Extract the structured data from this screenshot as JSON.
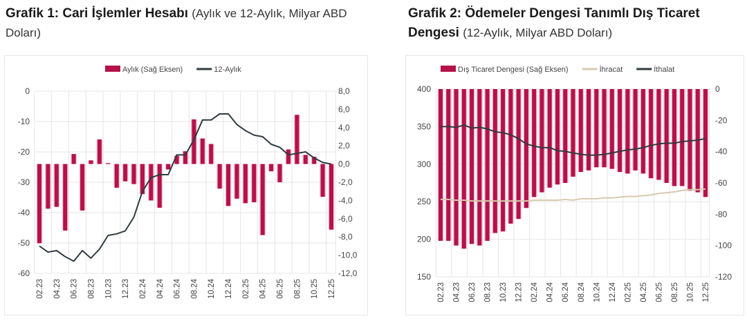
{
  "titles": {
    "chart1_bold": "Grafik 1: Cari İşlemler Hesabı",
    "chart1_sub": "(Aylık ve 12-Aylık, Milyar ABD Doları)",
    "chart2_bold": "Grafik 2: Ödemeler Dengesi Tanımlı Dış Ticaret Dengesi",
    "chart2_sub": "(12-Aylık, Milyar ABD Doları)"
  },
  "colors": {
    "bar": "#b5124a",
    "bar_glow": "#f7c9d6",
    "line_dark": "#2e3b40",
    "line_export": "#d9c9b0",
    "grid": "#e5e5e5"
  },
  "chart_data": [
    {
      "type": "bar+line",
      "title": "Grafik 1: Cari İşlemler Hesabı (Aylık ve 12-Aylık, Milyar ABD Doları)",
      "categories": [
        "02.23",
        "03.23",
        "04.23",
        "05.23",
        "06.23",
        "07.23",
        "08.23",
        "09.23",
        "10.23",
        "11.23",
        "12.23",
        "01.24",
        "02.24",
        "03.24",
        "04.24",
        "05.24",
        "06.24",
        "07.24",
        "08.24",
        "09.24",
        "10.24",
        "11.24",
        "12.24",
        "01.25",
        "02.25",
        "03.25",
        "04.25",
        "05.25",
        "06.25",
        "07.25",
        "08.25",
        "09.25",
        "10.25",
        "11.25",
        "12.25"
      ],
      "tick_labels": [
        "02.23",
        "04.23",
        "06.23",
        "08.23",
        "10.23",
        "12.23",
        "02.24",
        "04.24",
        "06.24",
        "08.24",
        "10.24",
        "12.24",
        "02.25",
        "04.25",
        "06.25",
        "08.25",
        "10.25",
        "12.25"
      ],
      "series": [
        {
          "name": "Aylık (Sağ Eksen)",
          "type": "bar",
          "axis": "right",
          "values": [
            -8.7,
            -4.9,
            -4.7,
            -7.3,
            1.1,
            -5.1,
            0.4,
            2.7,
            0.1,
            -2.6,
            -1.9,
            -2.2,
            -3.3,
            -4.0,
            -4.8,
            -0.6,
            0.9,
            1.4,
            4.9,
            2.8,
            2.2,
            -2.7,
            -4.6,
            -3.8,
            -4.3,
            -4.2,
            -7.8,
            -0.8,
            -2.0,
            1.6,
            5.4,
            1.0,
            0.8,
            -3.6,
            -7.2
          ]
        },
        {
          "name": "12-Aylık",
          "type": "line",
          "axis": "left",
          "values": [
            -51,
            -53,
            -52.5,
            -54.5,
            -56,
            -52.5,
            -55,
            -52,
            -47.5,
            -47,
            -46,
            -41.5,
            -33,
            -28.5,
            -27.5,
            -27.5,
            -21,
            -21,
            -16,
            -9.5,
            -9.5,
            -7.5,
            -7.5,
            -11,
            -13,
            -14.5,
            -15,
            -17.5,
            -18.5,
            -21,
            -20.5,
            -20,
            -22,
            -23.5,
            -24
          ]
        }
      ],
      "left_axis": {
        "ticks": [
          "0",
          "-10",
          "-20",
          "-30",
          "-40",
          "-50",
          "-60"
        ],
        "ylim": [
          -60,
          0
        ]
      },
      "right_axis": {
        "ticks": [
          "8,0",
          "6,0",
          "4,0",
          "2,0",
          "0,0",
          "-2,0",
          "-4,0",
          "-6,0",
          "-8,0",
          "-10,0",
          "-12,0"
        ],
        "ylim": [
          -12,
          8
        ]
      },
      "legend": [
        "Aylık (Sağ Eksen)",
        "12-Aylık"
      ],
      "legend_position": "top",
      "grid": true
    },
    {
      "type": "bar+line",
      "title": "Grafik 2: Ödemeler Dengesi Tanımlı Dış Ticaret Dengesi (12-Aylık, Milyar ABD Doları)",
      "categories": [
        "02.23",
        "03.23",
        "04.23",
        "05.23",
        "06.23",
        "07.23",
        "08.23",
        "09.23",
        "10.23",
        "11.23",
        "12.23",
        "01.24",
        "02.24",
        "03.24",
        "04.24",
        "05.24",
        "06.24",
        "07.24",
        "08.24",
        "09.24",
        "10.24",
        "11.24",
        "12.24",
        "01.25",
        "02.25",
        "03.25",
        "04.25",
        "05.25",
        "06.25",
        "07.25",
        "08.25",
        "09.25",
        "10.25",
        "11.25",
        "12.25"
      ],
      "tick_labels": [
        "02.23",
        "04.23",
        "06.23",
        "08.23",
        "10.23",
        "12.23",
        "02.24",
        "04.24",
        "06.24",
        "08.24",
        "10.24",
        "12.24",
        "02.25",
        "04.25",
        "06.25",
        "08.25",
        "10.25",
        "12.25"
      ],
      "series": [
        {
          "name": "Dış Ticaret Dengesi (Sağ Eksen)",
          "type": "bar",
          "axis": "right",
          "values": [
            -97,
            -97,
            -100,
            -102,
            -99,
            -100,
            -97,
            -92,
            -91,
            -86,
            -83,
            -76,
            -69,
            -66,
            -63,
            -61,
            -60,
            -56,
            -53,
            -52,
            -50,
            -50,
            -51,
            -53,
            -54,
            -52,
            -54,
            -57,
            -58,
            -60,
            -62,
            -62,
            -65,
            -66,
            -69
          ]
        },
        {
          "name": "İhracat",
          "type": "line",
          "axis": "left",
          "values": [
            253,
            253,
            252,
            252,
            251,
            251,
            251,
            251,
            251,
            251,
            251,
            251,
            252,
            252,
            252,
            252,
            253,
            252,
            254,
            254,
            254,
            255,
            255,
            256,
            257,
            257,
            258,
            259,
            261,
            262,
            263,
            265,
            266,
            266,
            267
          ]
        },
        {
          "name": "İthalat",
          "type": "line",
          "axis": "left",
          "values": [
            350,
            350,
            349,
            352,
            348,
            349,
            347,
            343,
            342,
            339,
            334,
            327,
            324,
            322,
            322,
            318,
            317,
            315,
            313,
            312,
            312,
            313,
            315,
            317,
            319,
            320,
            322,
            325,
            327,
            328,
            328,
            330,
            331,
            332,
            334
          ]
        }
      ],
      "left_axis": {
        "ticks": [
          "400",
          "350",
          "300",
          "250",
          "200",
          "150"
        ],
        "ylim": [
          150,
          400
        ]
      },
      "right_axis": {
        "ticks": [
          "0",
          "-20",
          "-40",
          "-60",
          "-80",
          "-100",
          "-120"
        ],
        "ylim": [
          -120,
          0
        ]
      },
      "legend": [
        "Dış Ticaret Dengesi (Sağ Eksen)",
        "İhracat",
        "İthalat"
      ],
      "legend_position": "top",
      "grid": true
    }
  ]
}
